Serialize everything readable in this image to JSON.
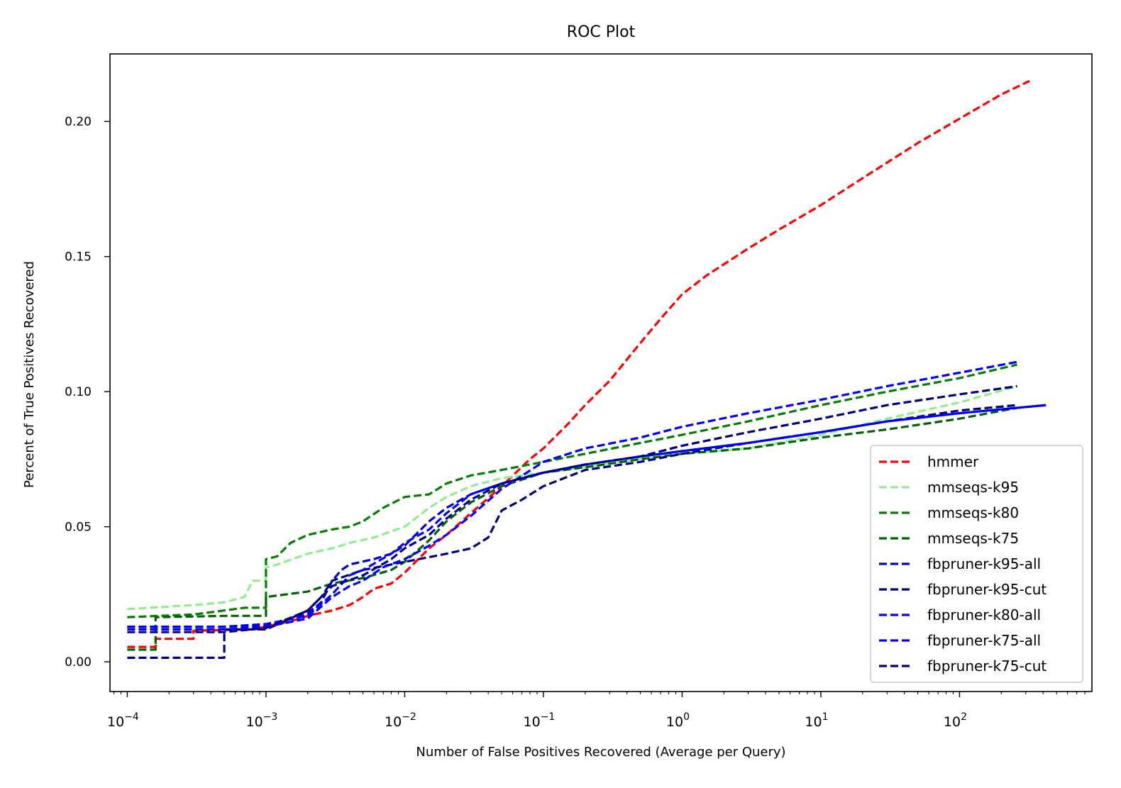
{
  "chart_data": {
    "type": "line",
    "title": "ROC Plot",
    "xlabel": "Number of False Positives Recovered (Average per Query)",
    "ylabel": "Percent of True Positives Recovered",
    "xscale": "log",
    "xlim": [
      7.5e-05,
      900
    ],
    "ylim": [
      -0.011,
      0.225
    ],
    "xticks": [
      {
        "value": 0.0001,
        "base": "10",
        "exp": "−4"
      },
      {
        "value": 0.001,
        "base": "10",
        "exp": "−3"
      },
      {
        "value": 0.01,
        "base": "10",
        "exp": "−2"
      },
      {
        "value": 0.1,
        "base": "10",
        "exp": "−1"
      },
      {
        "value": 1,
        "base": "10",
        "exp": "0"
      },
      {
        "value": 10,
        "base": "10",
        "exp": "1"
      },
      {
        "value": 100,
        "base": "10",
        "exp": "2"
      }
    ],
    "yticks": [
      {
        "value": 0.0,
        "label": "0.00"
      },
      {
        "value": 0.05,
        "label": "0.05"
      },
      {
        "value": 0.1,
        "label": "0.10"
      },
      {
        "value": 0.15,
        "label": "0.15"
      },
      {
        "value": 0.2,
        "label": "0.20"
      }
    ],
    "grid": false,
    "legend_position": "lower-right",
    "series": [
      {
        "name": "hmmer",
        "color": "#ff0000",
        "points": [
          [
            0.0001,
            0.0055
          ],
          [
            0.00016,
            0.0055
          ],
          [
            0.00016,
            0.0085
          ],
          [
            0.0003,
            0.0085
          ],
          [
            0.0003,
            0.0115
          ],
          [
            0.0008,
            0.012
          ],
          [
            0.0015,
            0.015
          ],
          [
            0.002,
            0.017
          ],
          [
            0.003,
            0.019
          ],
          [
            0.004,
            0.021
          ],
          [
            0.005,
            0.024
          ],
          [
            0.006,
            0.027
          ],
          [
            0.008,
            0.029
          ],
          [
            0.01,
            0.033
          ],
          [
            0.015,
            0.042
          ],
          [
            0.02,
            0.047
          ],
          [
            0.03,
            0.055
          ],
          [
            0.05,
            0.065
          ],
          [
            0.08,
            0.075
          ],
          [
            0.1,
            0.079
          ],
          [
            0.15,
            0.088
          ],
          [
            0.2,
            0.095
          ],
          [
            0.3,
            0.104
          ],
          [
            0.5,
            0.118
          ],
          [
            0.7,
            0.127
          ],
          [
            1,
            0.136
          ],
          [
            1.5,
            0.143
          ],
          [
            3,
            0.153
          ],
          [
            5,
            0.16
          ],
          [
            10,
            0.169
          ],
          [
            20,
            0.179
          ],
          [
            50,
            0.192
          ],
          [
            100,
            0.201
          ],
          [
            200,
            0.21
          ],
          [
            320,
            0.215
          ]
        ]
      },
      {
        "name": "mmseqs-k95",
        "color": "#90ee90",
        "points": [
          [
            0.0001,
            0.0195
          ],
          [
            0.0003,
            0.021
          ],
          [
            0.0005,
            0.022
          ],
          [
            0.0007,
            0.024
          ],
          [
            0.0008,
            0.03
          ],
          [
            0.001,
            0.03
          ],
          [
            0.001,
            0.035
          ],
          [
            0.0012,
            0.036
          ],
          [
            0.002,
            0.04
          ],
          [
            0.003,
            0.042
          ],
          [
            0.004,
            0.044
          ],
          [
            0.006,
            0.046
          ],
          [
            0.01,
            0.05
          ],
          [
            0.015,
            0.057
          ],
          [
            0.02,
            0.061
          ],
          [
            0.03,
            0.065
          ],
          [
            0.05,
            0.068
          ],
          [
            0.1,
            0.07
          ],
          [
            0.2,
            0.072
          ],
          [
            0.5,
            0.075
          ],
          [
            1,
            0.077
          ],
          [
            3,
            0.079
          ],
          [
            10,
            0.084
          ],
          [
            30,
            0.09
          ],
          [
            100,
            0.096
          ],
          [
            260,
            0.102
          ]
        ]
      },
      {
        "name": "mmseqs-k80",
        "color": "#008000",
        "points": [
          [
            0.0001,
            0.0165
          ],
          [
            0.0003,
            0.0175
          ],
          [
            0.0005,
            0.019
          ],
          [
            0.0007,
            0.02
          ],
          [
            0.001,
            0.02
          ],
          [
            0.001,
            0.038
          ],
          [
            0.0012,
            0.039
          ],
          [
            0.0015,
            0.044
          ],
          [
            0.002,
            0.047
          ],
          [
            0.003,
            0.049
          ],
          [
            0.004,
            0.05
          ],
          [
            0.005,
            0.052
          ],
          [
            0.007,
            0.057
          ],
          [
            0.01,
            0.061
          ],
          [
            0.015,
            0.062
          ],
          [
            0.02,
            0.066
          ],
          [
            0.03,
            0.069
          ],
          [
            0.05,
            0.071
          ],
          [
            0.1,
            0.074
          ],
          [
            0.2,
            0.077
          ],
          [
            0.5,
            0.081
          ],
          [
            1,
            0.084
          ],
          [
            3,
            0.089
          ],
          [
            10,
            0.095
          ],
          [
            30,
            0.1
          ],
          [
            100,
            0.105
          ],
          [
            260,
            0.11
          ]
        ]
      },
      {
        "name": "mmseqs-k75",
        "color": "#006400",
        "points": [
          [
            0.0001,
            0.0045
          ],
          [
            0.00016,
            0.0045
          ],
          [
            0.00016,
            0.0165
          ],
          [
            0.0005,
            0.017
          ],
          [
            0.001,
            0.017
          ],
          [
            0.001,
            0.024
          ],
          [
            0.002,
            0.026
          ],
          [
            0.003,
            0.029
          ],
          [
            0.005,
            0.031
          ],
          [
            0.008,
            0.034
          ],
          [
            0.01,
            0.037
          ],
          [
            0.015,
            0.045
          ],
          [
            0.02,
            0.052
          ],
          [
            0.03,
            0.059
          ],
          [
            0.05,
            0.065
          ],
          [
            0.1,
            0.07
          ],
          [
            0.2,
            0.072
          ],
          [
            0.5,
            0.075
          ],
          [
            1,
            0.077
          ],
          [
            3,
            0.079
          ],
          [
            10,
            0.083
          ],
          [
            30,
            0.086
          ],
          [
            100,
            0.09
          ],
          [
            260,
            0.094
          ]
        ]
      },
      {
        "name": "fbpruner-k95-all",
        "color": "#0000cd",
        "points": [
          [
            0.0001,
            0.013
          ],
          [
            0.0005,
            0.013
          ],
          [
            0.001,
            0.0135
          ],
          [
            0.002,
            0.018
          ],
          [
            0.0025,
            0.022
          ],
          [
            0.003,
            0.03
          ],
          [
            0.0035,
            0.034
          ],
          [
            0.004,
            0.036
          ],
          [
            0.006,
            0.038
          ],
          [
            0.008,
            0.04
          ],
          [
            0.01,
            0.043
          ],
          [
            0.015,
            0.052
          ],
          [
            0.02,
            0.057
          ],
          [
            0.03,
            0.062
          ],
          [
            0.05,
            0.066
          ],
          [
            0.1,
            0.07
          ],
          [
            0.2,
            0.073
          ],
          [
            0.5,
            0.076
          ],
          [
            1,
            0.078
          ],
          [
            3,
            0.081
          ],
          [
            10,
            0.085
          ],
          [
            30,
            0.089
          ],
          [
            100,
            0.092
          ],
          [
            420,
            0.095
          ]
        ]
      },
      {
        "name": "fbpruner-k95-cut",
        "color": "#000080",
        "points": [
          [
            0.0001,
            0.0015
          ],
          [
            0.0005,
            0.0015
          ],
          [
            0.0005,
            0.012
          ],
          [
            0.001,
            0.012
          ],
          [
            0.0015,
            0.016
          ],
          [
            0.002,
            0.019
          ],
          [
            0.0025,
            0.024
          ],
          [
            0.003,
            0.03
          ],
          [
            0.005,
            0.034
          ],
          [
            0.01,
            0.037
          ],
          [
            0.02,
            0.04
          ],
          [
            0.03,
            0.042
          ],
          [
            0.04,
            0.046
          ],
          [
            0.05,
            0.056
          ],
          [
            0.07,
            0.06
          ],
          [
            0.1,
            0.065
          ],
          [
            0.2,
            0.071
          ],
          [
            0.5,
            0.074
          ],
          [
            1,
            0.077
          ],
          [
            3,
            0.081
          ],
          [
            10,
            0.085
          ],
          [
            30,
            0.089
          ],
          [
            100,
            0.093
          ],
          [
            260,
            0.095
          ]
        ]
      },
      {
        "name": "fbpruner-k80-all",
        "color": "#0000ff",
        "points": [
          [
            0.0001,
            0.012
          ],
          [
            0.0005,
            0.012
          ],
          [
            0.001,
            0.013
          ],
          [
            0.002,
            0.016
          ],
          [
            0.003,
            0.024
          ],
          [
            0.004,
            0.028
          ],
          [
            0.005,
            0.03
          ],
          [
            0.007,
            0.035
          ],
          [
            0.01,
            0.038
          ],
          [
            0.015,
            0.043
          ],
          [
            0.02,
            0.047
          ],
          [
            0.03,
            0.054
          ],
          [
            0.05,
            0.064
          ],
          [
            0.1,
            0.074
          ],
          [
            0.2,
            0.079
          ],
          [
            0.5,
            0.083
          ],
          [
            1,
            0.087
          ],
          [
            3,
            0.092
          ],
          [
            10,
            0.097
          ],
          [
            30,
            0.102
          ],
          [
            100,
            0.107
          ],
          [
            260,
            0.111
          ]
        ]
      },
      {
        "name": "fbpruner-k75-all",
        "color": "#0000ff",
        "points": [
          [
            0.0001,
            0.013
          ],
          [
            0.0005,
            0.013
          ],
          [
            0.001,
            0.014
          ],
          [
            0.002,
            0.017
          ],
          [
            0.003,
            0.025
          ],
          [
            0.004,
            0.032
          ],
          [
            0.005,
            0.034
          ],
          [
            0.008,
            0.04
          ],
          [
            0.01,
            0.044
          ],
          [
            0.015,
            0.049
          ],
          [
            0.02,
            0.055
          ],
          [
            0.03,
            0.062
          ],
          [
            0.05,
            0.066
          ],
          [
            0.1,
            0.07
          ],
          [
            0.2,
            0.073
          ],
          [
            0.5,
            0.076
          ],
          [
            1,
            0.078
          ],
          [
            3,
            0.081
          ],
          [
            10,
            0.085
          ],
          [
            30,
            0.089
          ],
          [
            100,
            0.092
          ],
          [
            420,
            0.095
          ]
        ]
      },
      {
        "name": "fbpruner-k75-cut",
        "color": "#000080",
        "points": [
          [
            0.0001,
            0.011
          ],
          [
            0.0005,
            0.011
          ],
          [
            0.001,
            0.0125
          ],
          [
            0.002,
            0.019
          ],
          [
            0.003,
            0.028
          ],
          [
            0.005,
            0.032
          ],
          [
            0.008,
            0.038
          ],
          [
            0.01,
            0.042
          ],
          [
            0.015,
            0.047
          ],
          [
            0.02,
            0.053
          ],
          [
            0.03,
            0.06
          ],
          [
            0.05,
            0.066
          ],
          [
            0.1,
            0.07
          ],
          [
            0.2,
            0.073
          ],
          [
            0.5,
            0.076
          ],
          [
            1,
            0.08
          ],
          [
            3,
            0.085
          ],
          [
            10,
            0.09
          ],
          [
            30,
            0.095
          ],
          [
            100,
            0.099
          ],
          [
            260,
            0.102
          ]
        ]
      }
    ]
  }
}
